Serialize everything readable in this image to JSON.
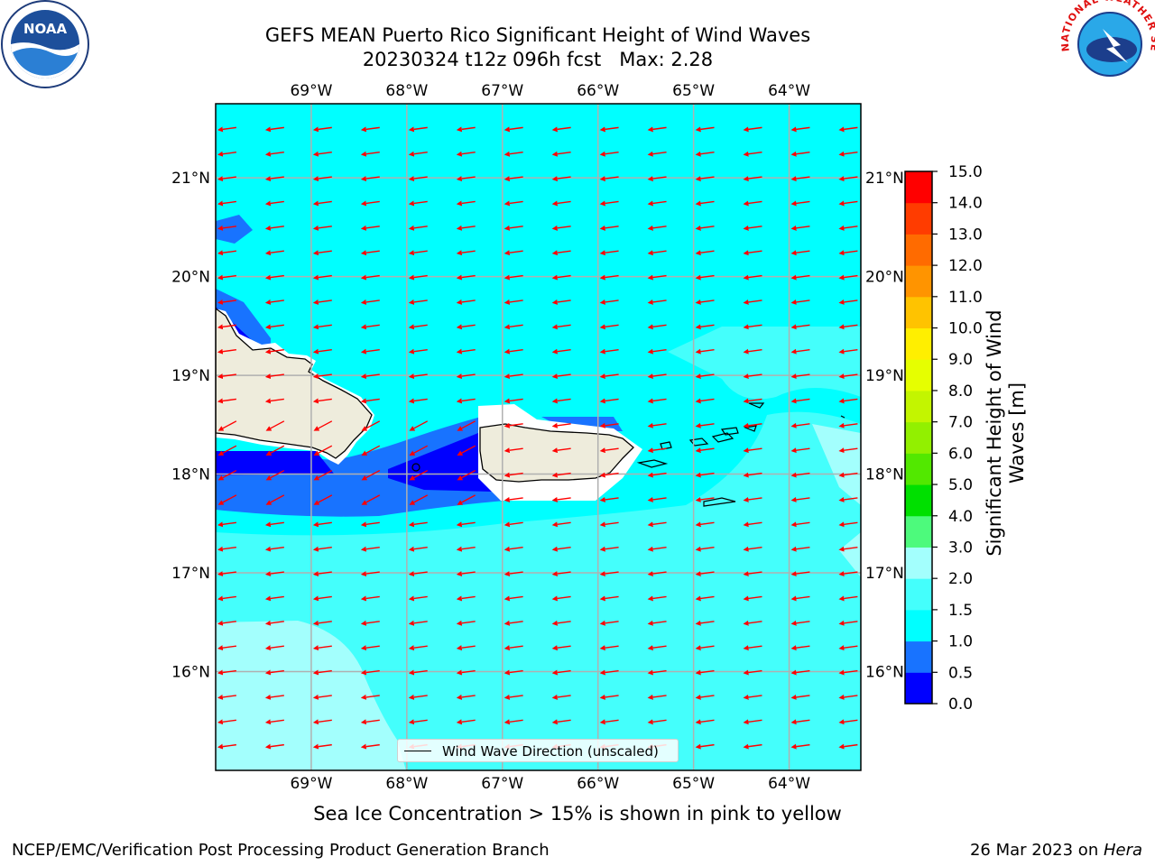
{
  "title": {
    "line1": "GEFS MEAN Puerto Rico Significant Height of Wind Waves",
    "line2": "20230324 t12z 096h fcst   Max: 2.28"
  },
  "map": {
    "longitude_labels": [
      "69°W",
      "68°W",
      "67°W",
      "66°W",
      "65°W",
      "64°W"
    ],
    "latitude_labels": [
      "21°N",
      "20°N",
      "19°N",
      "18°N",
      "17°N",
      "16°N"
    ],
    "extent": {
      "lon_min": -70.0,
      "lon_max": -63.25,
      "lat_min": 15.0,
      "lat_max": 21.75
    },
    "field": "significant height of wind waves",
    "max_value": 2.28,
    "wind_wave_direction": "westward (from east)",
    "land_color": "#eeecdc",
    "vector_color": "#ff0000"
  },
  "legend": {
    "label": "Wind Wave Direction (unscaled)"
  },
  "colorbar": {
    "label": "Significant Height of Wind Waves [m]",
    "ticks": [
      "15.0",
      "14.0",
      "13.0",
      "12.0",
      "11.0",
      "10.0",
      "9.0",
      "8.0",
      "7.0",
      "6.0",
      "5.0",
      "4.0",
      "3.0",
      "2.0",
      "1.5",
      "1.0",
      "0.5",
      "0.0"
    ],
    "colors": [
      "#0000ff",
      "#1873ff",
      "#00ffff",
      "#44fffc",
      "#a3fffd",
      "#4dfa7c",
      "#00e000",
      "#52e800",
      "#92f000",
      "#c3f500",
      "#e6ff00",
      "#ffef00",
      "#ffc300",
      "#ff9400",
      "#ff6b00",
      "#ff3c00",
      "#ff0000"
    ]
  },
  "note": "Sea Ice Concentration > 15% is shown in pink to yellow",
  "footer": {
    "left": "NCEP/EMC/Verification Post Processing Product Generation Branch",
    "date": "26 Mar 2023 on ",
    "machine": "Hera"
  },
  "logos": {
    "noaa": "NOAA",
    "nws": "NATIONAL WEATHER SERVICE"
  }
}
